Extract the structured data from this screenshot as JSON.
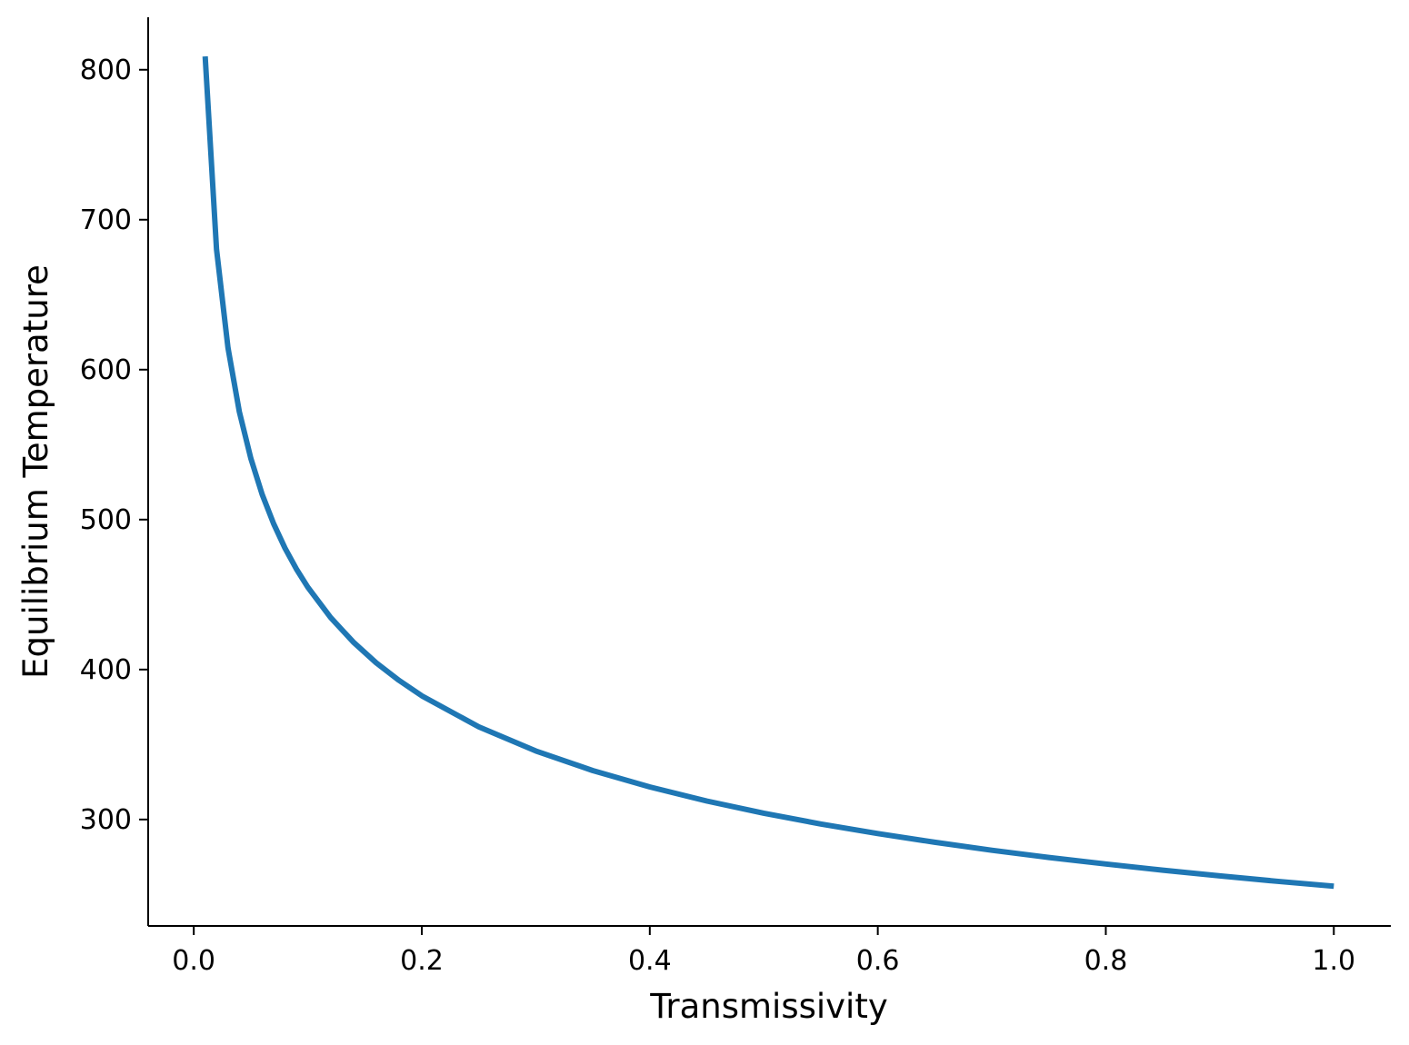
{
  "chart_data": {
    "type": "line",
    "title": "",
    "xlabel": "Transmissivity",
    "ylabel": "Equilibrium Temperature",
    "xlim": [
      -0.04,
      1.05
    ],
    "ylim": [
      229,
      835
    ],
    "x_ticks": [
      0.0,
      0.2,
      0.4,
      0.6,
      0.8,
      1.0
    ],
    "x_tick_labels": [
      "0.0",
      "0.2",
      "0.4",
      "0.6",
      "0.8",
      "1.0"
    ],
    "y_ticks": [
      300,
      400,
      500,
      600,
      700,
      800
    ],
    "y_tick_labels": [
      "300",
      "400",
      "500",
      "600",
      "700",
      "800"
    ],
    "grid": false,
    "legend": "none",
    "series": [
      {
        "color": "#1f77b4",
        "x": [
          0.01,
          0.02,
          0.03,
          0.04,
          0.05,
          0.06,
          0.07,
          0.08,
          0.09,
          0.1,
          0.12,
          0.14,
          0.16,
          0.18,
          0.2,
          0.25,
          0.3,
          0.35,
          0.4,
          0.45,
          0.5,
          0.55,
          0.6,
          0.65,
          0.7,
          0.75,
          0.8,
          0.85,
          0.9,
          0.95,
          1.0
        ],
        "y": [
          808.9,
          680.2,
          614.6,
          571.9,
          540.9,
          516.8,
          497.3,
          481.0,
          467.1,
          454.9,
          434.7,
          418.3,
          404.5,
          392.8,
          382.5,
          361.8,
          345.7,
          332.6,
          321.7,
          312.3,
          304.2,
          297.0,
          290.6,
          284.8,
          279.5,
          274.7,
          270.3,
          266.2,
          262.4,
          258.8,
          255.5
        ]
      }
    ]
  }
}
